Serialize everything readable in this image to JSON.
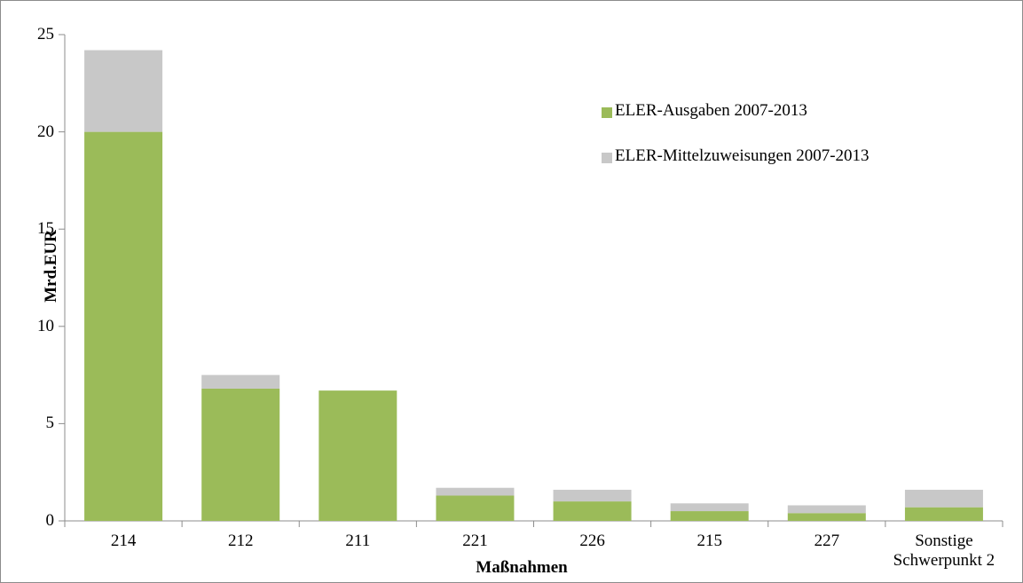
{
  "chart_data": {
    "type": "stacked_bar",
    "categories": [
      "214",
      "212",
      "211",
      "221",
      "226",
      "215",
      "227",
      "Sonstige Schwerpunkt 2"
    ],
    "series": [
      {
        "name": "ELER-Ausgaben 2007-2013",
        "color": "#9bbb59",
        "values": [
          20.0,
          6.8,
          6.7,
          1.3,
          1.0,
          0.5,
          0.4,
          0.7
        ]
      },
      {
        "name": "ELER-Mittelzuweisungen 2007-2013",
        "color": "#c8c8c8",
        "values": [
          4.2,
          0.7,
          0,
          0.4,
          0.6,
          0.4,
          0.4,
          0.9
        ]
      }
    ],
    "ylim": [
      0,
      25
    ],
    "yticks": [
      0,
      5,
      10,
      15,
      20,
      25
    ],
    "ylabel": "Mrd.EUR",
    "xlabel": "Maßnahmen",
    "legend": "upper right"
  }
}
